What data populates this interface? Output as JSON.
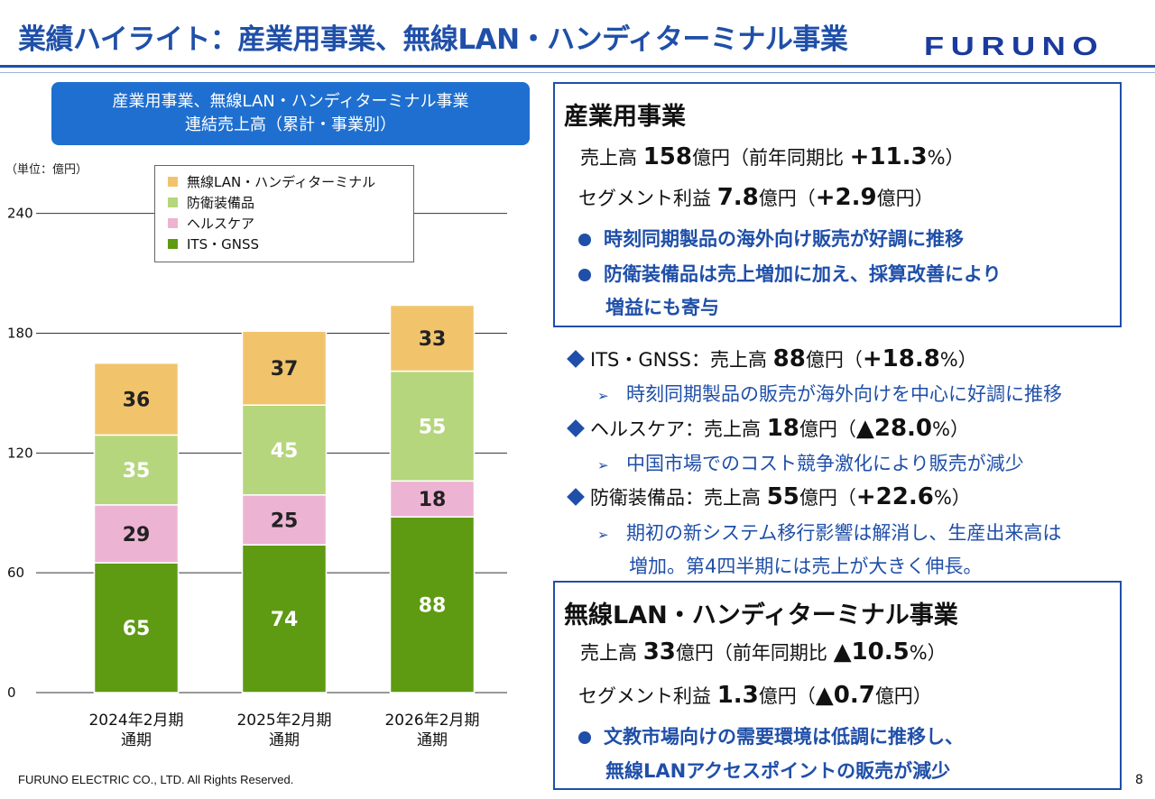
{
  "header": {
    "title": "業績ハイライト：産業用事業、無線LAN・ハンディターミナル事業",
    "logo": "FURUNO"
  },
  "chart_box": {
    "line1": "産業用事業、無線LAN・ハンディターミナル事業",
    "line2": "連結売上高（累計・事業別）"
  },
  "chart_data": {
    "type": "bar",
    "stacked": true,
    "unit": "（単位：億円）",
    "categories": [
      "2024年2月期|通期",
      "2025年2月期|通期",
      "2026年2月期|通期"
    ],
    "series": [
      {
        "name": "ITS・GNSS",
        "values": [
          65,
          74,
          88
        ],
        "color": "#5e9a12"
      },
      {
        "name": "ヘルスケア",
        "values": [
          29,
          25,
          18
        ],
        "color": "#edb3d3"
      },
      {
        "name": "防衛装備品",
        "values": [
          35,
          45,
          55
        ],
        "color": "#b5d67c"
      },
      {
        "name": "無線LAN・ハンディターミナル",
        "values": [
          36,
          37,
          33
        ],
        "color": "#f1c46c"
      }
    ],
    "legend_order": [
      "無線LAN・ハンディターミナル",
      "防衛装備品",
      "ヘルスケア",
      "ITS・GNSS"
    ],
    "ylim": [
      0,
      240
    ],
    "yticks": [
      0,
      60,
      120,
      180,
      240
    ],
    "grid": true
  },
  "industrial": {
    "title": "産業用事業",
    "sales_label": "売上高 ",
    "sales_value": "158",
    "sales_mid": "億円（前年同期比 ",
    "sales_change": "+11.3",
    "sales_tail": "%）",
    "profit_label": "セグメント利益 ",
    "profit_value": "7.8",
    "profit_mid": "億円（",
    "profit_change": "+2.9",
    "profit_tail": "億円）",
    "bullet1": "時刻同期製品の海外向け販売が好調に推移",
    "bullet2": "防衛装備品は売上増加に加え、採算改善により",
    "bullet2b": "増益にも寄与"
  },
  "segments": [
    {
      "label": "ITS・GNSS：売上高 ",
      "value": "88",
      "mid": "億円（",
      "change": "+18.8",
      "tail": "%）",
      "notes": [
        "時刻同期製品の販売が海外向けを中心に好調に推移"
      ]
    },
    {
      "label": "ヘルスケア：売上高 ",
      "value": "18",
      "mid": "億円（",
      "change": "▲28.0",
      "tail": "%）",
      "notes": [
        "中国市場でのコスト競争激化により販売が減少"
      ]
    },
    {
      "label": "防衛装備品：売上高 ",
      "value": "55",
      "mid": "億円（",
      "change": "+22.6",
      "tail": "%）",
      "notes": [
        "期初の新システム移行影響は解消し、生産出来高は",
        "増加。第4四半期には売上が大きく伸長。"
      ]
    }
  ],
  "wlan": {
    "title": "無線LAN・ハンディターミナル事業",
    "sales_label": "売上高 ",
    "sales_value": "33",
    "sales_mid": "億円（前年同期比 ",
    "sales_change": "▲10.5",
    "sales_tail": "%）",
    "profit_label": "セグメント利益 ",
    "profit_value": "1.3",
    "profit_mid": "億円（",
    "profit_change": "▲0.7",
    "profit_tail": "億円）",
    "bullet1": "文教市場向けの需要環境は低調に推移し、",
    "bullet1b": "無線LANアクセスポイントの販売が減少"
  },
  "footer": {
    "copyright": "FURUNO ELECTRIC CO., LTD. All Rights Reserved.",
    "page": "8"
  }
}
